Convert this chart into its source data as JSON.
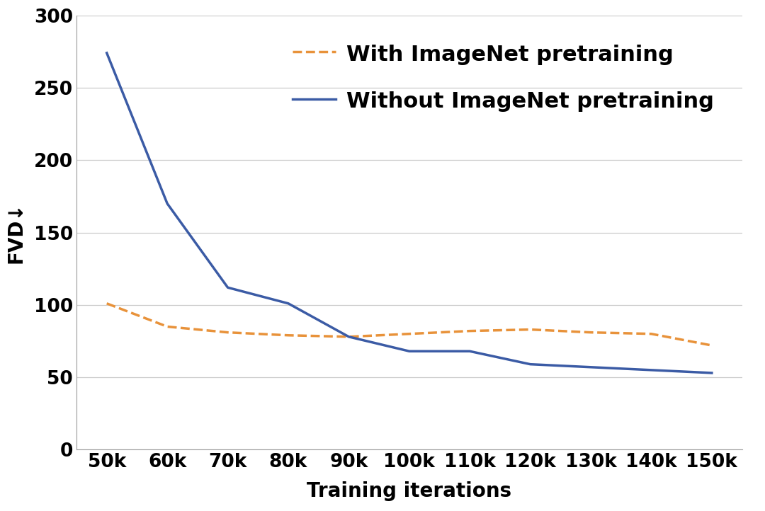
{
  "x_labels": [
    "50k",
    "60k",
    "70k",
    "80k",
    "90k",
    "100k",
    "110k",
    "120k",
    "130k",
    "140k",
    "150k"
  ],
  "x_values": [
    50000,
    60000,
    70000,
    80000,
    90000,
    100000,
    110000,
    120000,
    130000,
    140000,
    150000
  ],
  "with_pretrain_y": [
    101,
    85,
    81,
    79,
    78,
    80,
    82,
    83,
    81,
    80,
    72
  ],
  "without_pretrain_y": [
    274,
    170,
    112,
    101,
    78,
    68,
    68,
    59,
    57,
    55,
    53
  ],
  "with_pretrain_color": "#E8923A",
  "without_pretrain_color": "#3B5BA5",
  "with_pretrain_label": "With ImageNet pretraining",
  "without_pretrain_label": "Without ImageNet pretraining",
  "xlabel": "Training iterations",
  "ylabel": "FVD↓",
  "ylim": [
    0,
    300
  ],
  "yticks": [
    0,
    50,
    100,
    150,
    200,
    250,
    300
  ],
  "grid_color": "#cccccc",
  "background_color": "#ffffff",
  "label_fontsize": 20,
  "tick_fontsize": 19,
  "legend_fontsize": 22
}
